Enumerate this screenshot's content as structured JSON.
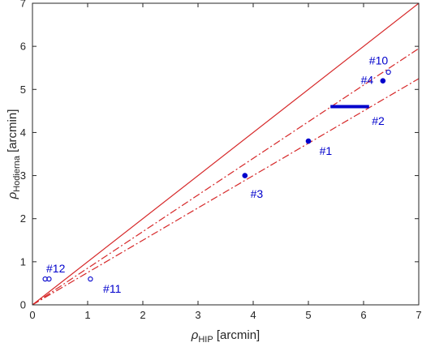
{
  "chart_data": {
    "type": "scatter",
    "title": "",
    "xlabel": {
      "symbol": "ρ",
      "sub": "HIP",
      "suffix": " [arcmin]"
    },
    "ylabel": {
      "symbol": "ρ",
      "sub": "Hodierna",
      "suffix": " [arcmin]"
    },
    "xlim": [
      0,
      7
    ],
    "ylim": [
      0,
      7
    ],
    "xticks": [
      "0",
      "1",
      "2",
      "3",
      "4",
      "5",
      "6",
      "7"
    ],
    "yticks": [
      "0",
      "1",
      "2",
      "3",
      "4",
      "5",
      "6",
      "7"
    ],
    "grid": false,
    "lines": [
      {
        "style": "solid",
        "slope": 1.0
      },
      {
        "style": "dashdot",
        "slope": 0.85
      },
      {
        "style": "dashdot",
        "slope": 0.75
      }
    ],
    "filled_points": [
      {
        "x": 5.0,
        "y": 3.8
      },
      {
        "x": 3.85,
        "y": 3.0
      },
      {
        "x": 6.35,
        "y": 5.2
      }
    ],
    "open_points": [
      {
        "x": 6.45,
        "y": 5.4
      },
      {
        "x": 1.05,
        "y": 0.6
      },
      {
        "x": 0.23,
        "y": 0.6
      },
      {
        "x": 0.3,
        "y": 0.6
      }
    ],
    "ranges": [
      {
        "x0": 5.4,
        "x1": 6.1,
        "y": 4.6
      }
    ],
    "annotations": [
      {
        "text": "#1",
        "x": 5.2,
        "y": 3.55
      },
      {
        "text": "#2",
        "x": 6.15,
        "y": 4.25
      },
      {
        "text": "#3",
        "x": 3.95,
        "y": 2.55
      },
      {
        "text": "#4",
        "x": 5.95,
        "y": 5.2
      },
      {
        "text": "#10",
        "x": 6.1,
        "y": 5.65
      },
      {
        "text": "#11",
        "x": 1.28,
        "y": 0.35
      },
      {
        "text": "#12",
        "x": 0.25,
        "y": 0.82
      }
    ],
    "colors": {
      "lines": "#d62728",
      "points": "#0000cc",
      "axes": "#262626"
    }
  }
}
